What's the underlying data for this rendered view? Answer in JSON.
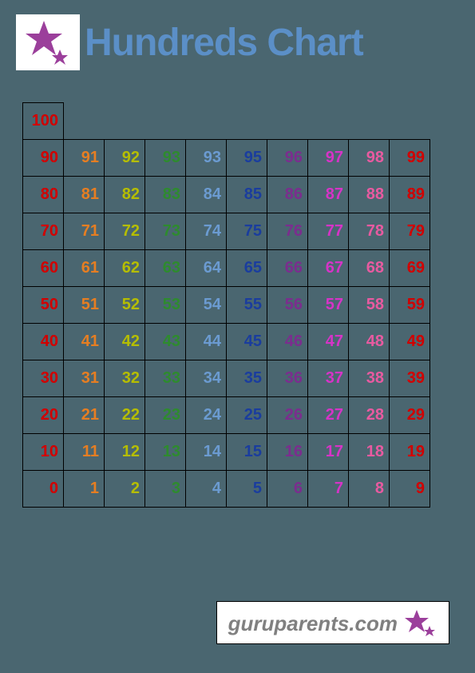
{
  "title": "Hundreds Chart",
  "title_color": "#5b8fc7",
  "background_color": "#4a6670",
  "logo": {
    "star_color": "#9b3f9b",
    "background": "#ffffff"
  },
  "chart": {
    "type": "table",
    "cell_border_color": "#000000",
    "font_size": 20,
    "font_weight": "bold",
    "column_colors": [
      "#d10000",
      "#e67e22",
      "#b5bd00",
      "#2e8b2e",
      "#6b9bd1",
      "#1a3d9e",
      "#7b2d8e",
      "#d633c7",
      "#e85aa0",
      "#d10000"
    ],
    "rows": [
      [
        100,
        null,
        null,
        null,
        null,
        null,
        null,
        null,
        null,
        null
      ],
      [
        90,
        91,
        92,
        93,
        93,
        95,
        96,
        97,
        98,
        99
      ],
      [
        80,
        81,
        82,
        83,
        84,
        85,
        86,
        87,
        88,
        89
      ],
      [
        70,
        71,
        72,
        73,
        74,
        75,
        76,
        77,
        78,
        79
      ],
      [
        60,
        61,
        62,
        63,
        64,
        65,
        66,
        67,
        68,
        69
      ],
      [
        50,
        51,
        52,
        53,
        54,
        55,
        56,
        57,
        58,
        59
      ],
      [
        40,
        41,
        42,
        43,
        44,
        45,
        46,
        47,
        48,
        49
      ],
      [
        30,
        31,
        32,
        33,
        34,
        35,
        36,
        37,
        38,
        39
      ],
      [
        20,
        21,
        22,
        23,
        24,
        25,
        26,
        27,
        28,
        29
      ],
      [
        10,
        11,
        12,
        13,
        14,
        15,
        16,
        17,
        18,
        19
      ],
      [
        0,
        1,
        2,
        3,
        4,
        5,
        6,
        7,
        8,
        9
      ]
    ]
  },
  "footer": {
    "text": "guruparents.com",
    "text_color": "#808080",
    "star_color": "#9b3f9b",
    "background": "#ffffff",
    "border_color": "#000000"
  }
}
